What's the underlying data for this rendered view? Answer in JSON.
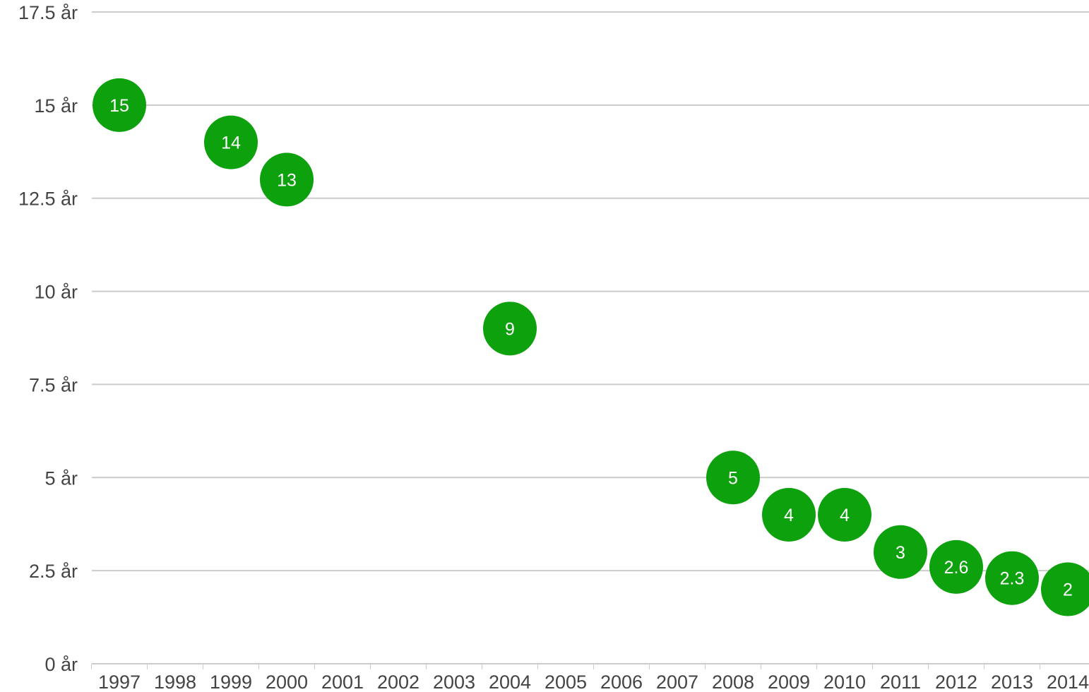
{
  "chart_data": {
    "type": "scatter",
    "title": "",
    "xlabel": "",
    "ylabel": "",
    "y_unit": "år",
    "ylim": [
      0,
      17.5
    ],
    "y_ticks": [
      {
        "value": 0,
        "label": "0 år"
      },
      {
        "value": 2.5,
        "label": "2.5 år"
      },
      {
        "value": 5,
        "label": "5 år"
      },
      {
        "value": 7.5,
        "label": "7.5 år"
      },
      {
        "value": 10,
        "label": "10 år"
      },
      {
        "value": 12.5,
        "label": "12.5 år"
      },
      {
        "value": 15,
        "label": "15 år"
      },
      {
        "value": 17.5,
        "label": "17.5 år"
      }
    ],
    "categories": [
      "1997",
      "1998",
      "1999",
      "2000",
      "2001",
      "2002",
      "2003",
      "2004",
      "2005",
      "2006",
      "2007",
      "2008",
      "2009",
      "2010",
      "2011",
      "2012",
      "2013",
      "2014"
    ],
    "points": [
      {
        "x": "1997",
        "y": 15,
        "label": "15"
      },
      {
        "x": "1999",
        "y": 14,
        "label": "14"
      },
      {
        "x": "2000",
        "y": 13,
        "label": "13"
      },
      {
        "x": "2004",
        "y": 9,
        "label": "9"
      },
      {
        "x": "2008",
        "y": 5,
        "label": "5"
      },
      {
        "x": "2009",
        "y": 4,
        "label": "4"
      },
      {
        "x": "2010",
        "y": 4,
        "label": "4"
      },
      {
        "x": "2011",
        "y": 3,
        "label": "3"
      },
      {
        "x": "2012",
        "y": 2.6,
        "label": "2.6"
      },
      {
        "x": "2013",
        "y": 2.3,
        "label": "2.3"
      },
      {
        "x": "2014",
        "y": 2,
        "label": "2"
      }
    ],
    "marker_color": "#0ea10e",
    "label_color": "#ffffff",
    "grid": true,
    "legend": "none"
  }
}
